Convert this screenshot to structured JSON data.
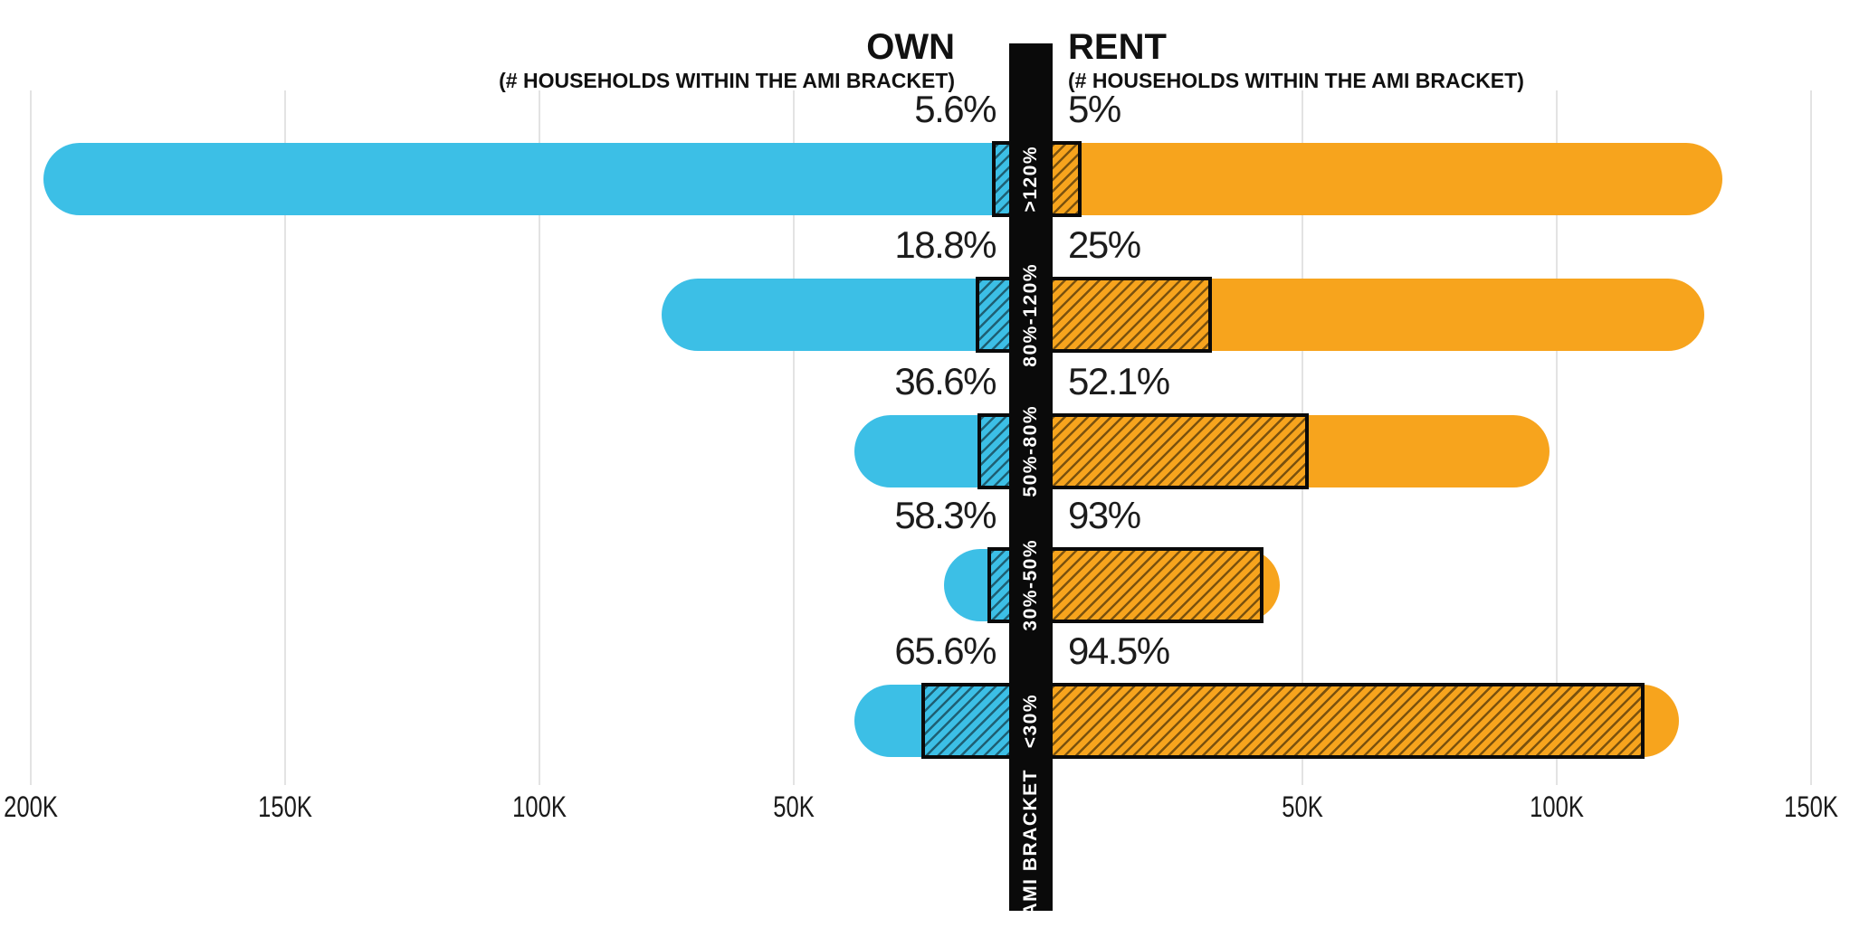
{
  "header": {
    "own": {
      "title": "OWN",
      "subtitle": "(# HOUSEHOLDS  WITHIN THE AMI BRACKET)"
    },
    "rent": {
      "title": "RENT",
      "subtitle": "(# HOUSEHOLDS WITHIN THE AMI BRACKET)"
    }
  },
  "center_band": {
    "label": "AMI BRACKET",
    "color": "#0a0a0a",
    "text_color": "#ffffff"
  },
  "axis": {
    "left_tick_labels": [
      "200K",
      "150K",
      "100K",
      "50K"
    ],
    "right_tick_labels": [
      "50K",
      "100K",
      "150K"
    ],
    "tick_unit": "households"
  },
  "chart_data": {
    "type": "bar",
    "variant": "diverging-butterfly",
    "title_left": "OWN",
    "title_right": "RENT",
    "categories": [
      ">120%",
      "80%-120%",
      "50%-80%",
      "30%-50%",
      "<30%"
    ],
    "category_axis_title": "AMI BRACKET",
    "x_axis_range_each_side": [
      0,
      200000
    ],
    "gridline_step": 50000,
    "gridlines": true,
    "series": [
      {
        "name": "OWN",
        "side": "left",
        "households": [
          197500,
          76000,
          38000,
          20500,
          38000
        ],
        "pct_labels": [
          "5.6%",
          "18.8%",
          "36.6%",
          "58.3%",
          "65.6%"
        ],
        "pct_values": [
          5.6,
          18.8,
          36.6,
          58.3,
          65.6
        ],
        "bar_color": "#3cbfe6"
      },
      {
        "name": "RENT",
        "side": "right",
        "households": [
          132500,
          129000,
          98500,
          45500,
          124000
        ],
        "pct_labels": [
          "5%",
          "25%",
          "52.1%",
          "93%",
          "94.5%"
        ],
        "pct_values": [
          5,
          25,
          52.1,
          93,
          94.5
        ],
        "bar_color": "#f7a41d"
      }
    ],
    "hatched_overlay_meaning": "percent of households within the AMI bracket (hatched share of bar)"
  },
  "colors": {
    "own": "#3cbfe6",
    "rent": "#f7a41d",
    "band": "#0a0a0a",
    "gridline": "#e3e3e3",
    "label_text": "#1c1c1c",
    "hatch_line": "rgba(0,0,0,0.5)"
  }
}
